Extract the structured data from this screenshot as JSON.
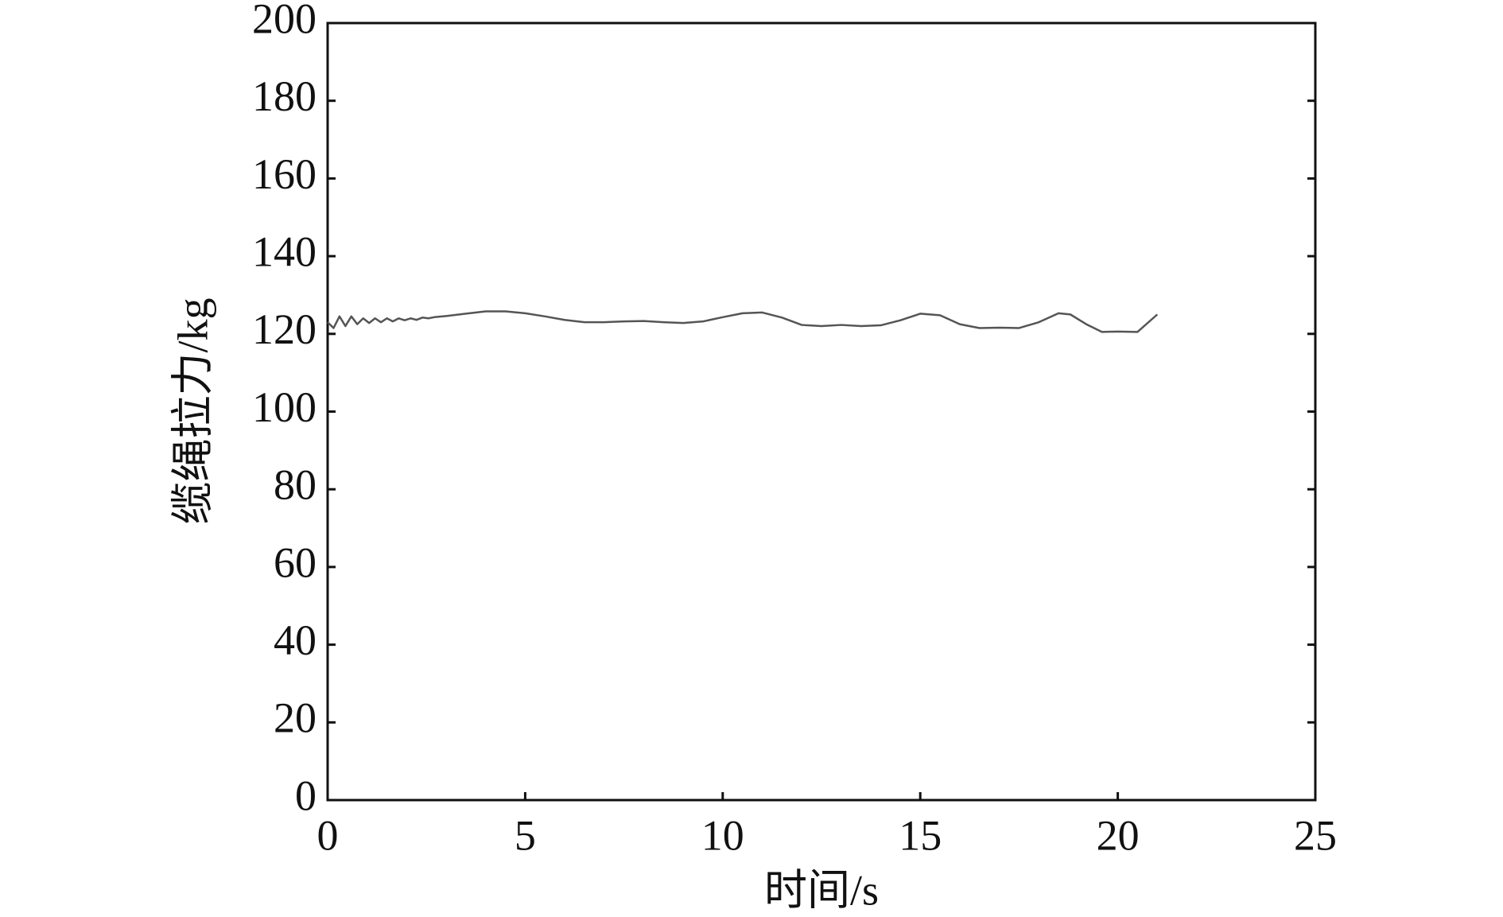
{
  "chart_data": {
    "type": "line",
    "x_label": "时间/s",
    "y_label": "缆绳拉力/kg",
    "x": [
      0,
      0.15,
      0.3,
      0.45,
      0.6,
      0.75,
      0.9,
      1.05,
      1.2,
      1.35,
      1.5,
      1.65,
      1.8,
      1.95,
      2.1,
      2.25,
      2.4,
      2.55,
      2.7,
      3,
      3.5,
      4,
      4.5,
      5,
      5.5,
      6,
      6.5,
      7,
      7.5,
      8,
      8.5,
      9,
      9.5,
      10,
      10.5,
      11,
      11.5,
      12,
      12.5,
      13,
      13.5,
      14,
      14.5,
      15,
      15.5,
      16,
      16.5,
      17,
      17.5,
      18,
      18.5,
      18.8,
      19.2,
      19.6,
      20,
      20.5,
      21
    ],
    "values": [
      123,
      121.5,
      124.5,
      122,
      124.5,
      122.5,
      124,
      122.8,
      124,
      123,
      124,
      123.2,
      124,
      123.5,
      124,
      123.6,
      124.2,
      124,
      124.3,
      124.6,
      125.2,
      125.8,
      125.8,
      125.3,
      124.5,
      123.6,
      123,
      123,
      123.2,
      123.3,
      123,
      122.8,
      123.2,
      124.3,
      125.3,
      125.5,
      124.2,
      122.3,
      122,
      122.3,
      122,
      122.2,
      123.5,
      125.2,
      124.8,
      122.5,
      121.5,
      121.6,
      121.5,
      123,
      125.3,
      125,
      122.5,
      120.5,
      120.6,
      120.5,
      125
    ],
    "color": "#555555",
    "xlim": [
      0,
      25
    ],
    "xticks": [
      0,
      5,
      10,
      15,
      20,
      25
    ],
    "ylim": [
      0,
      200
    ],
    "yticks": [
      0,
      20,
      40,
      60,
      80,
      100,
      120,
      140,
      160,
      180,
      200
    ]
  }
}
